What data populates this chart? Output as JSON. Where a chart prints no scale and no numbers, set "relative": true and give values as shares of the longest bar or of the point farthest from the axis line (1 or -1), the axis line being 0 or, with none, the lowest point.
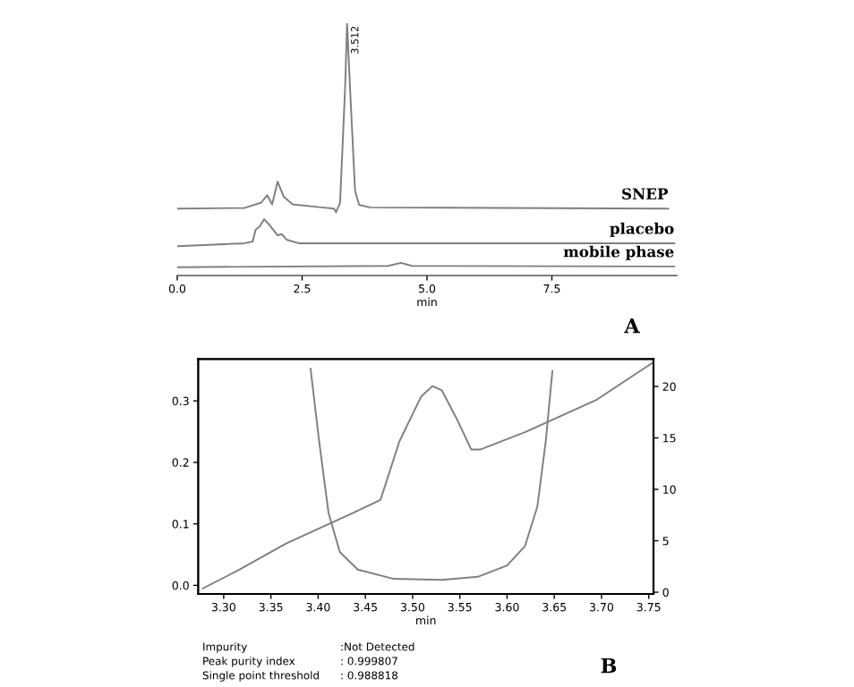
{
  "chart_data": [
    {
      "type": "line",
      "relative": true,
      "xlabel": "min",
      "xlim": [
        0,
        10
      ],
      "xticks": [
        {
          "value": 0,
          "label": "0.0"
        },
        2.5,
        {
          "value": 5,
          "label": "5.0"
        },
        7.5
      ],
      "tick_labels": "x",
      "grid": false,
      "legend": false,
      "series": [
        {
          "name": "SNEP",
          "color": "#7f7f7f",
          "x": [
            0,
            1.35,
            1.68,
            1.8,
            1.9,
            2.01,
            2.13,
            2.31,
            2.9,
            3.14,
            3.18,
            3.26,
            3.36,
            3.4,
            3.46,
            3.56,
            3.64,
            3.86,
            9.83
          ],
          "values": [
            0.265,
            0.268,
            0.289,
            0.318,
            0.282,
            0.372,
            0.313,
            0.282,
            0.27,
            0.265,
            0.251,
            0.289,
            0.74,
            1.0,
            0.74,
            0.336,
            0.28,
            0.27,
            0.265
          ]
        },
        {
          "name": "placebo",
          "color": "#7f7f7f",
          "x": [
            0,
            1.35,
            1.51,
            1.57,
            1.65,
            1.74,
            1.83,
            2.01,
            2.09,
            2.19,
            2.43,
            9.95
          ],
          "values": [
            0.116,
            0.128,
            0.135,
            0.182,
            0.194,
            0.223,
            0.204,
            0.159,
            0.164,
            0.142,
            0.128,
            0.128
          ]
        },
        {
          "name": "mobile phase",
          "color": "#7f7f7f",
          "x": [
            0,
            4.22,
            4.48,
            4.7,
            9.95
          ],
          "values": [
            0.033,
            0.038,
            0.05,
            0.038,
            0.036
          ]
        }
      ],
      "annotations": [
        {
          "text": "3.512",
          "x": 3.4,
          "y": 1.0
        },
        "A"
      ]
    },
    {
      "type": "line",
      "xlabel": "min",
      "xlim": [
        3.273,
        3.755
      ],
      "xticks": [
        {
          "value": 3.3,
          "label": "3.30"
        },
        {
          "value": 3.35,
          "label": "3.35"
        },
        {
          "value": 3.4,
          "label": "3.40"
        },
        {
          "value": 3.45,
          "label": "3.45"
        },
        {
          "value": 3.5,
          "label": "3.50"
        },
        {
          "value": 3.55,
          "label": "3.55"
        },
        {
          "value": 3.6,
          "label": "3.60"
        },
        {
          "value": 3.65,
          "label": "3.65"
        },
        {
          "value": 3.7,
          "label": "3.70"
        },
        {
          "value": 3.75,
          "label": "3.75"
        }
      ],
      "ylim": [
        -0.014,
        0.368
      ],
      "yticks": [
        {
          "value": 0,
          "label": "0.0"
        },
        0.1,
        0.2,
        0.3
      ],
      "y2lim": [
        -0.17,
        22.66
      ],
      "y2ticks": [
        0,
        5,
        10,
        15,
        20
      ],
      "grid": false,
      "series": [
        {
          "color": "#7f7f7f",
          "x": [
            3.278,
            3.316,
            3.366,
            3.436,
            3.466,
            3.486,
            3.509,
            3.521,
            3.531,
            3.546,
            3.562,
            3.572,
            3.619,
            3.695,
            3.755
          ],
          "values": [
            -0.005,
            0.025,
            0.068,
            0.117,
            0.139,
            0.234,
            0.307,
            0.324,
            0.317,
            0.273,
            0.221,
            0.221,
            0.249,
            0.302,
            0.363
          ]
        },
        {
          "color": "#7f7f7f",
          "axis": "y2",
          "x": [
            3.392,
            3.401,
            3.411,
            3.423,
            3.442,
            3.48,
            3.531,
            3.569,
            3.6,
            3.619,
            3.632,
            3.641,
            3.648
          ],
          "values": [
            21.7,
            14.7,
            7.7,
            3.9,
            2.2,
            1.3,
            1.2,
            1.5,
            2.6,
            4.5,
            8.3,
            14.7,
            21.5
          ]
        }
      ],
      "annotations": [
        "Impurity",
        ":Not Detected",
        "Peak purity index",
        ": 0.999807",
        "Single point threshold",
        ": 0.988818",
        "B"
      ]
    }
  ]
}
